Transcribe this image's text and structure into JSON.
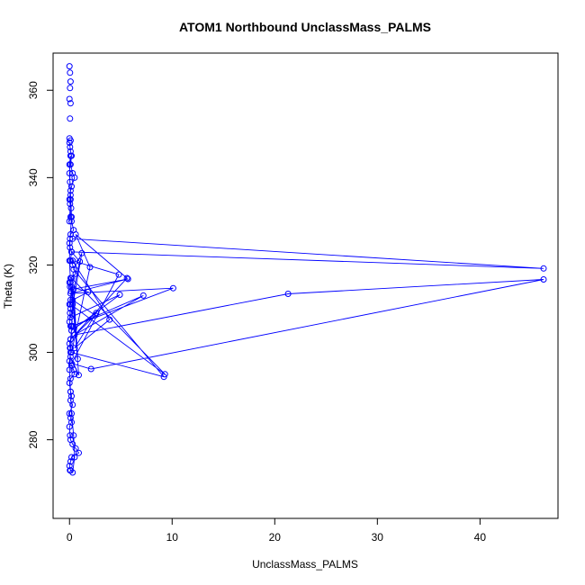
{
  "chart_data": {
    "type": "scatter",
    "title": "ATOM1 Northbound UnclassMass_PALMS",
    "xlabel": "UnclassMass_PALMS",
    "ylabel": "Theta (K)",
    "xlim": [
      -1.6,
      47.6
    ],
    "ylim": [
      262,
      368.5
    ],
    "xticks": [
      0,
      10,
      20,
      30,
      40
    ],
    "yticks": [
      280,
      300,
      320,
      340,
      360
    ],
    "grid": false,
    "legend": "none",
    "colors": {
      "series": "#0000ff",
      "axis": "#000000"
    },
    "series": [
      {
        "mode": "line+points",
        "x": [
          0.0,
          0.05,
          0.1,
          0.2,
          0.1,
          0.3,
          0.5,
          0.2,
          0.1,
          0.0,
          0.05,
          0.15,
          0.1,
          0.2,
          0.4,
          0.1,
          0.0,
          0.05,
          0.2,
          0.1,
          0.3,
          0.6,
          0.1,
          0.0,
          0.05,
          0.15,
          0.1,
          0.0,
          0.1,
          0.05,
          0.0,
          0.1,
          0.2,
          0.1,
          0.0,
          0.05,
          0.1,
          0.0,
          0.2,
          0.4,
          0.5,
          0.1,
          0.0,
          0.1,
          0.2,
          0.1,
          0.3,
          0.0,
          0.1,
          0.2,
          0.0,
          0.05,
          0.1,
          0.3,
          0.6,
          0.9,
          0.2,
          0.1,
          0.0,
          0.1,
          0.3,
          0.5,
          0.4,
          0.2,
          0.1,
          0.0,
          0.1,
          0.2,
          0.3,
          0.1,
          0.0,
          0.05,
          0.2,
          0.1,
          0.0,
          0.1,
          0.0,
          0.05,
          0.1,
          0.0
        ],
        "y": [
          348.0,
          347.0,
          346.0,
          345.0,
          343.0,
          341.0,
          340.0,
          338.0,
          337.0,
          335.0,
          334.0,
          333.0,
          331.0,
          330.0,
          328.0,
          327.0,
          325.0,
          324.0,
          323.0,
          321.0,
          320.0,
          318.0,
          317.0,
          316.0,
          315.0,
          314.0,
          312.0,
          311.0,
          310.0,
          309.0,
          307.0,
          306.0,
          305.0,
          303.0,
          302.0,
          301.0,
          300.0,
          298.0,
          297.0,
          296.0,
          295.0,
          294.0,
          293.0,
          291.0,
          290.0,
          289.0,
          288.0,
          286.0,
          285.0,
          284.0,
          283.0,
          281.0,
          280.0,
          279.0,
          278.0,
          277.0,
          276.0,
          275.0,
          274.0,
          273.0,
          272.5,
          276.0,
          281.0,
          286.0,
          291.0,
          296.0,
          301.0,
          306.0,
          311.0,
          316.0,
          321.0,
          326.0,
          331.0,
          336.0,
          341.0,
          345.0,
          343.0,
          339.0,
          335.0,
          330.0
        ]
      },
      {
        "mode": "points",
        "x": [
          0.0,
          0.05,
          0.1,
          0.05,
          0.0,
          0.1,
          0.05,
          0.0,
          0.1,
          0.05
        ],
        "y": [
          365.5,
          364.0,
          362.0,
          360.5,
          358.0,
          357.0,
          353.5,
          349.0,
          348.5,
          273.0
        ]
      },
      {
        "mode": "line+points",
        "x": [
          0.3,
          46.2,
          0.2,
          1.0,
          0.1,
          9.3,
          0.2,
          0.8,
          0.4,
          5.7,
          0.1,
          10.1,
          0.3,
          7.2,
          0.5,
          21.3,
          46.2,
          2.1,
          0.2,
          4.8,
          0.3,
          3.9,
          0.5,
          2.6,
          0.2,
          4.9,
          0.1,
          1.2,
          0.4,
          9.2,
          0.2,
          2.0,
          0.6,
          5.6,
          0.1,
          2.5,
          0.3,
          1.8,
          0.2,
          0.9,
          0.1
        ],
        "y": [
          326.0,
          319.2,
          323.0,
          320.8,
          311.0,
          295.0,
          317.0,
          298.5,
          314.5,
          316.8,
          313.5,
          314.7,
          306.0,
          313.0,
          304.0,
          313.4,
          316.7,
          296.2,
          297.5,
          317.8,
          321.0,
          307.5,
          301.0,
          309.0,
          305.0,
          313.2,
          308.0,
          322.7,
          319.0,
          294.4,
          300.0,
          319.5,
          327.0,
          317.0,
          303.0,
          308.5,
          312.0,
          313.8,
          315.0,
          294.8,
          299.0
        ]
      }
    ]
  }
}
